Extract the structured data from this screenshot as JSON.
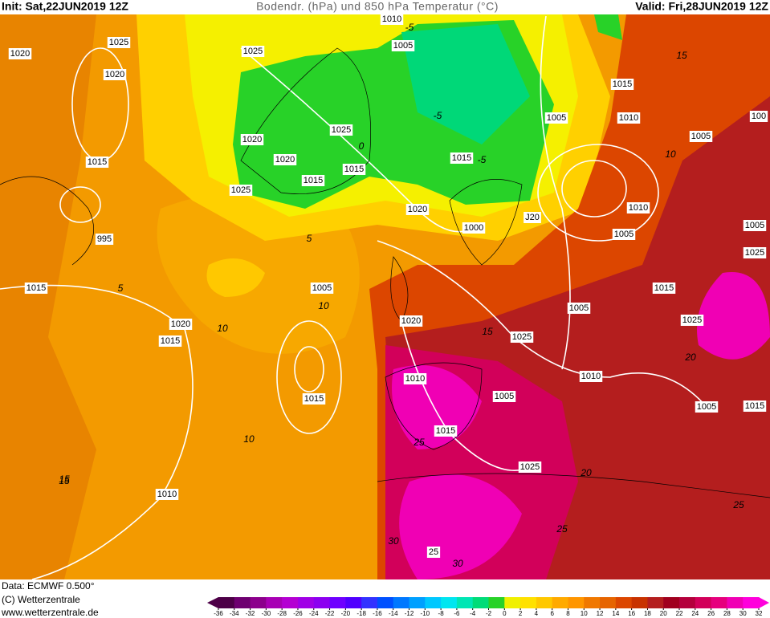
{
  "header": {
    "init": "Init: Sat,22JUN2019 12Z",
    "title": "Bodendr. (hPa) und 850 hPa Temperatur (°C)",
    "valid": "Valid: Fri,28JUN2019 12Z"
  },
  "footer": {
    "data": "Data: ECMWF  0.500°",
    "copyright": "(C) Wetterzentrale",
    "url": "www.wetterzentrale.de"
  },
  "isobar_labels": [
    "1020",
    "1025",
    "1025",
    "1020",
    "1010",
    "1005",
    "1015",
    "1005",
    "1010",
    "100",
    "1005",
    "1020",
    "1025",
    "1015",
    "1020",
    "1015",
    "1015",
    "1015",
    "1025",
    "1020",
    "995",
    "1010",
    "J20",
    "1000",
    "1005",
    "1005",
    "1025",
    "1015",
    "1005",
    "1015",
    "1005",
    "1025",
    "1020",
    "1020",
    "1025",
    "1015",
    "1010",
    "1010",
    "1015",
    "1005",
    "1005",
    "1015",
    "1015",
    "1025",
    "1010",
    "25"
  ],
  "temperature_labels": [
    "-5",
    "-5",
    "0",
    "5",
    "5",
    "-5",
    "10",
    "10",
    "10",
    "15",
    "15",
    "15",
    "20",
    "20",
    "25",
    "25",
    "25",
    "30",
    "30",
    "10",
    "15"
  ],
  "colorbar": {
    "ticks": [
      -36,
      -34,
      -32,
      -30,
      -28,
      -26,
      -24,
      -22,
      -20,
      -18,
      -16,
      -14,
      -12,
      -10,
      -8,
      -6,
      -4,
      -2,
      0,
      2,
      4,
      6,
      8,
      10,
      12,
      14,
      16,
      18,
      20,
      22,
      24,
      26,
      28,
      30,
      32
    ],
    "colors": [
      "#4d0047",
      "#6e0070",
      "#8c008c",
      "#a800b4",
      "#b400d2",
      "#a000e6",
      "#8c00f0",
      "#6e00ff",
      "#5000ff",
      "#3232ff",
      "#0050ff",
      "#0078ff",
      "#00a0ff",
      "#00c8ff",
      "#00e6f0",
      "#00e6b4",
      "#00dc78",
      "#28d228",
      "#f0f000",
      "#ffe100",
      "#ffc800",
      "#ffaa00",
      "#ff9600",
      "#f07800",
      "#e66400",
      "#dc4600",
      "#c83200",
      "#b41e1e",
      "#a0001e",
      "#b4003c",
      "#d2005a",
      "#e6007d",
      "#f000b4",
      "#ff00dc"
    ]
  }
}
